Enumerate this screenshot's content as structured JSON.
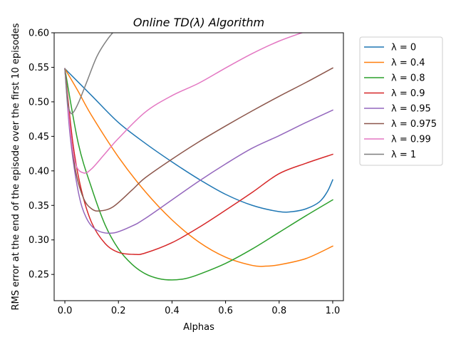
{
  "chart_data": {
    "type": "line",
    "title": "Online TD(λ) Algorithm",
    "xlabel": "Alphas",
    "ylabel": "RMS error at the end of the episode over the first 10 episodes",
    "xlim": [
      -0.04,
      1.04
    ],
    "ylim": [
      0.212,
      0.6
    ],
    "xticks": [
      0.0,
      0.2,
      0.4,
      0.6,
      0.8,
      1.0
    ],
    "xtick_labels": [
      "0.0",
      "0.2",
      "0.4",
      "0.6",
      "0.8",
      "1.0"
    ],
    "yticks": [
      0.25,
      0.3,
      0.35,
      0.4,
      0.45,
      0.5,
      0.55,
      0.6
    ],
    "ytick_labels": [
      "0.25",
      "0.30",
      "0.35",
      "0.40",
      "0.45",
      "0.50",
      "0.55",
      "0.60"
    ],
    "grid": false,
    "legend_position": "outside-right-top",
    "series": [
      {
        "name": "λ = 0",
        "color": "#1f77b4",
        "x": [
          0,
          0.1,
          0.2,
          0.3,
          0.4,
          0.5,
          0.6,
          0.7,
          0.8,
          0.85,
          0.9,
          0.95,
          0.98,
          1.0
        ],
        "y": [
          0.548,
          0.509,
          0.47,
          0.44,
          0.413,
          0.388,
          0.366,
          0.35,
          0.341,
          0.341,
          0.345,
          0.355,
          0.37,
          0.387
        ]
      },
      {
        "name": "λ = 0.4",
        "color": "#ff7f0e",
        "x": [
          0,
          0.05,
          0.1,
          0.2,
          0.3,
          0.4,
          0.5,
          0.6,
          0.7,
          0.75,
          0.8,
          0.9,
          1.0
        ],
        "y": [
          0.548,
          0.515,
          0.48,
          0.42,
          0.37,
          0.329,
          0.297,
          0.275,
          0.263,
          0.262,
          0.264,
          0.273,
          0.291
        ]
      },
      {
        "name": "λ = 0.8",
        "color": "#2ca02c",
        "x": [
          0,
          0.05,
          0.1,
          0.15,
          0.2,
          0.25,
          0.3,
          0.35,
          0.4,
          0.45,
          0.5,
          0.6,
          0.7,
          0.8,
          0.9,
          1.0
        ],
        "y": [
          0.548,
          0.44,
          0.375,
          0.322,
          0.287,
          0.265,
          0.251,
          0.244,
          0.242,
          0.244,
          0.25,
          0.266,
          0.287,
          0.311,
          0.335,
          0.358
        ]
      },
      {
        "name": "λ = 0.9",
        "color": "#d62728",
        "x": [
          0,
          0.03,
          0.06,
          0.1,
          0.15,
          0.2,
          0.26,
          0.3,
          0.4,
          0.5,
          0.6,
          0.7,
          0.8,
          0.9,
          1.0
        ],
        "y": [
          0.548,
          0.44,
          0.375,
          0.325,
          0.295,
          0.282,
          0.279,
          0.281,
          0.296,
          0.318,
          0.343,
          0.369,
          0.396,
          0.411,
          0.424
        ]
      },
      {
        "name": "λ = 0.95",
        "color": "#9467bd",
        "x": [
          0,
          0.02,
          0.05,
          0.08,
          0.12,
          0.18,
          0.25,
          0.3,
          0.4,
          0.5,
          0.6,
          0.7,
          0.8,
          0.9,
          1.0
        ],
        "y": [
          0.548,
          0.45,
          0.37,
          0.332,
          0.314,
          0.31,
          0.32,
          0.331,
          0.358,
          0.385,
          0.41,
          0.433,
          0.451,
          0.47,
          0.488
        ]
      },
      {
        "name": "λ = 0.975",
        "color": "#8c564b",
        "x": [
          0,
          0.02,
          0.04,
          0.07,
          0.1,
          0.13,
          0.18,
          0.25,
          0.3,
          0.4,
          0.5,
          0.6,
          0.7,
          0.8,
          0.9,
          1.0
        ],
        "y": [
          0.548,
          0.46,
          0.4,
          0.36,
          0.345,
          0.342,
          0.348,
          0.372,
          0.39,
          0.417,
          0.442,
          0.465,
          0.487,
          0.508,
          0.528,
          0.549
        ]
      },
      {
        "name": "λ = 0.99",
        "color": "#e377c2",
        "x": [
          0,
          0.02,
          0.04,
          0.07,
          0.1,
          0.15,
          0.2,
          0.3,
          0.4,
          0.5,
          0.6,
          0.7,
          0.8,
          0.9
        ],
        "y": [
          0.548,
          0.46,
          0.41,
          0.397,
          0.403,
          0.425,
          0.447,
          0.485,
          0.509,
          0.527,
          0.549,
          0.57,
          0.588,
          0.602
        ]
      },
      {
        "name": "λ = 1",
        "color": "#7f7f7f",
        "x": [
          0,
          0.01,
          0.02,
          0.03,
          0.05,
          0.08,
          0.12,
          0.16,
          0.2,
          0.22
        ],
        "y": [
          0.548,
          0.5,
          0.485,
          0.484,
          0.498,
          0.527,
          0.566,
          0.591,
          0.609,
          0.615
        ]
      }
    ]
  }
}
